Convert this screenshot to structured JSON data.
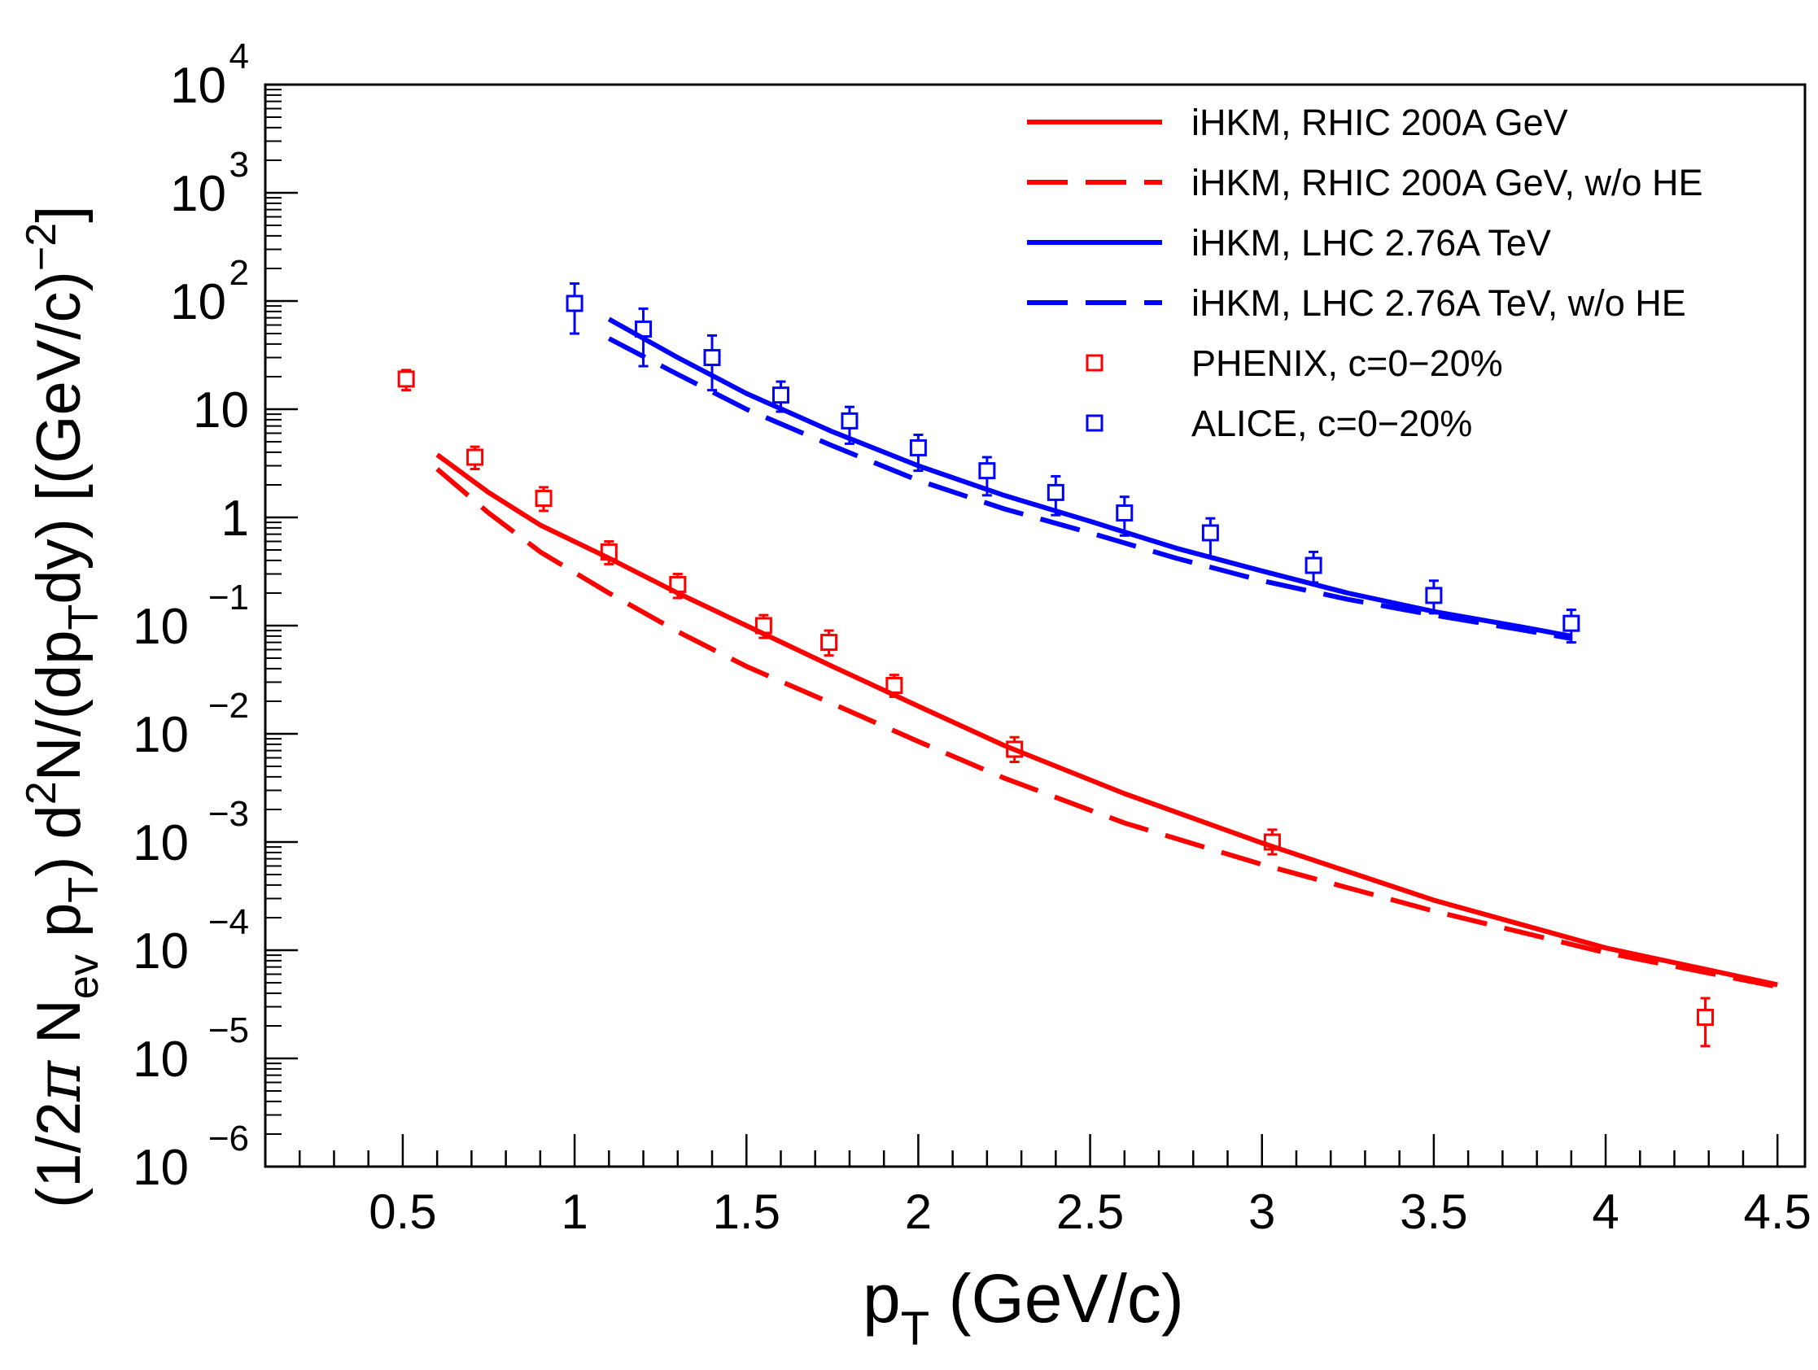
{
  "chart_data": {
    "type": "scatter",
    "title": "",
    "xlabel": {
      "main": "p",
      "sub": "T",
      "rest": " (GeV/c)"
    },
    "ylabel": {
      "p1": "(1/2",
      "pi": "π",
      "p2": " N",
      "sub_ev": "ev",
      "p3": " p",
      "sub_T1": "T",
      "p4": ") d",
      "sup2": "2",
      "p5": "N/(dp",
      "sub_T2": "T",
      "p6": "dy) [(GeV/c)",
      "sup_m2": "−2",
      "p7": "]"
    },
    "x_range": [
      0.1,
      4.58
    ],
    "y_range_log10": [
      -6,
      4
    ],
    "x_ticks": [
      {
        "v": 0.5,
        "label": "0.5"
      },
      {
        "v": 1,
        "label": "1"
      },
      {
        "v": 1.5,
        "label": "1.5"
      },
      {
        "v": 2,
        "label": "2"
      },
      {
        "v": 2.5,
        "label": "2.5"
      },
      {
        "v": 3,
        "label": "3"
      },
      {
        "v": 3.5,
        "label": "3.5"
      },
      {
        "v": 4,
        "label": "4"
      },
      {
        "v": 4.5,
        "label": "4.5"
      }
    ],
    "y_ticks": [
      {
        "e": 4,
        "base": "10",
        "sup": "4"
      },
      {
        "e": 3,
        "base": "10",
        "sup": "3"
      },
      {
        "e": 2,
        "base": "10",
        "sup": "2"
      },
      {
        "e": 1,
        "base": "10",
        "sup": ""
      },
      {
        "e": 0,
        "base": "1",
        "sup": ""
      },
      {
        "e": -1,
        "base": "10",
        "sup": "−1"
      },
      {
        "e": -2,
        "base": "10",
        "sup": "−2"
      },
      {
        "e": -3,
        "base": "10",
        "sup": "−3"
      },
      {
        "e": -4,
        "base": "10",
        "sup": "−4"
      },
      {
        "e": -5,
        "base": "10",
        "sup": "−5"
      },
      {
        "e": -6,
        "base": "10",
        "sup": "−6"
      }
    ],
    "series": [
      {
        "name": "iHKM, RHIC 200A GeV",
        "kind": "line",
        "style": "solid",
        "color": "#ff0000",
        "x": [
          0.6,
          0.75,
          0.9,
          1.1,
          1.3,
          1.5,
          1.75,
          2.0,
          2.25,
          2.6,
          3.0,
          3.5,
          4.0,
          4.5
        ],
        "y": [
          3.8,
          1.7,
          0.85,
          0.42,
          0.2,
          0.1,
          0.042,
          0.018,
          0.0078,
          0.0028,
          0.00098,
          0.00029,
          0.000105,
          4.8e-05
        ]
      },
      {
        "name": "iHKM, RHIC 200A GeV, w/o HE",
        "kind": "line",
        "style": "dashed",
        "color": "#ff0000",
        "x": [
          0.6,
          0.75,
          0.9,
          1.1,
          1.3,
          1.5,
          1.75,
          2.0,
          2.25,
          2.6,
          3.0,
          3.5,
          4.0,
          4.5
        ],
        "y": [
          2.8,
          1.1,
          0.48,
          0.2,
          0.088,
          0.042,
          0.019,
          0.0085,
          0.0039,
          0.0015,
          0.00062,
          0.00023,
          9.5e-05,
          4.6e-05
        ]
      },
      {
        "name": "iHKM, LHC 2.76A TeV",
        "kind": "line",
        "style": "solid",
        "color": "#0000ff",
        "x": [
          1.1,
          1.3,
          1.5,
          1.75,
          2.0,
          2.25,
          2.5,
          2.75,
          3.0,
          3.25,
          3.5,
          3.75,
          3.9
        ],
        "y": [
          68,
          30,
          14,
          6.2,
          3.0,
          1.6,
          0.92,
          0.52,
          0.32,
          0.2,
          0.135,
          0.098,
          0.08
        ]
      },
      {
        "name": "iHKM, LHC 2.76A TeV, w/o HE",
        "kind": "line",
        "style": "dashed",
        "color": "#0000ff",
        "x": [
          1.1,
          1.3,
          1.5,
          1.75,
          2.0,
          2.25,
          2.5,
          2.75,
          3.0,
          3.25,
          3.5,
          3.75,
          3.9
        ],
        "y": [
          45,
          21,
          10,
          4.6,
          2.2,
          1.2,
          0.72,
          0.42,
          0.26,
          0.175,
          0.125,
          0.092,
          0.076
        ]
      },
      {
        "name": "PHENIX, c=0−20%",
        "kind": "points",
        "marker": "open-square",
        "color": "#ff0000",
        "x": [
          0.51,
          0.71,
          0.91,
          1.1,
          1.3,
          1.55,
          1.74,
          1.93,
          2.28,
          3.03,
          4.29
        ],
        "y": [
          19,
          3.6,
          1.5,
          0.48,
          0.24,
          0.1,
          0.07,
          0.028,
          0.0072,
          0.001,
          2.4e-05
        ],
        "err_low": [
          15,
          2.8,
          1.15,
          0.37,
          0.18,
          0.077,
          0.053,
          0.022,
          0.0055,
          0.00077,
          1.3e-05
        ],
        "err_high": [
          23,
          4.5,
          1.9,
          0.6,
          0.3,
          0.125,
          0.09,
          0.035,
          0.0093,
          0.0013,
          3.6e-05
        ]
      },
      {
        "name": "ALICE, c=0−20%",
        "kind": "points",
        "marker": "open-square",
        "color": "#0000ff",
        "x": [
          1.0,
          1.2,
          1.4,
          1.6,
          1.8,
          2.0,
          2.2,
          2.4,
          2.6,
          2.85,
          3.15,
          3.5,
          3.9
        ],
        "y": [
          95,
          55,
          30,
          13.5,
          7.8,
          4.4,
          2.7,
          1.7,
          1.1,
          0.72,
          0.36,
          0.19,
          0.105
        ],
        "err_low": [
          50,
          25,
          15,
          9.5,
          4.8,
          2.7,
          1.6,
          1.05,
          0.68,
          0.43,
          0.25,
          0.13,
          0.07
        ],
        "err_high": [
          145,
          85,
          48,
          18,
          10.5,
          5.8,
          3.6,
          2.4,
          1.55,
          0.98,
          0.48,
          0.26,
          0.14
        ]
      }
    ],
    "legend": {
      "position": "top-right",
      "entries": [
        {
          "label": "iHKM, RHIC 200A GeV",
          "color": "#ff0000",
          "kind": "solid"
        },
        {
          "label": "iHKM, RHIC 200A GeV, w/o HE",
          "color": "#ff0000",
          "kind": "dashed"
        },
        {
          "label": "iHKM, LHC 2.76A TeV",
          "color": "#0000ff",
          "kind": "solid"
        },
        {
          "label": "iHKM, LHC 2.76A TeV, w/o HE",
          "color": "#0000ff",
          "kind": "dashed"
        },
        {
          "label": "PHENIX, c=0−20%",
          "color": "#ff0000",
          "kind": "marker"
        },
        {
          "label": "ALICE, c=0−20%",
          "color": "#0000ff",
          "kind": "marker"
        }
      ]
    }
  }
}
